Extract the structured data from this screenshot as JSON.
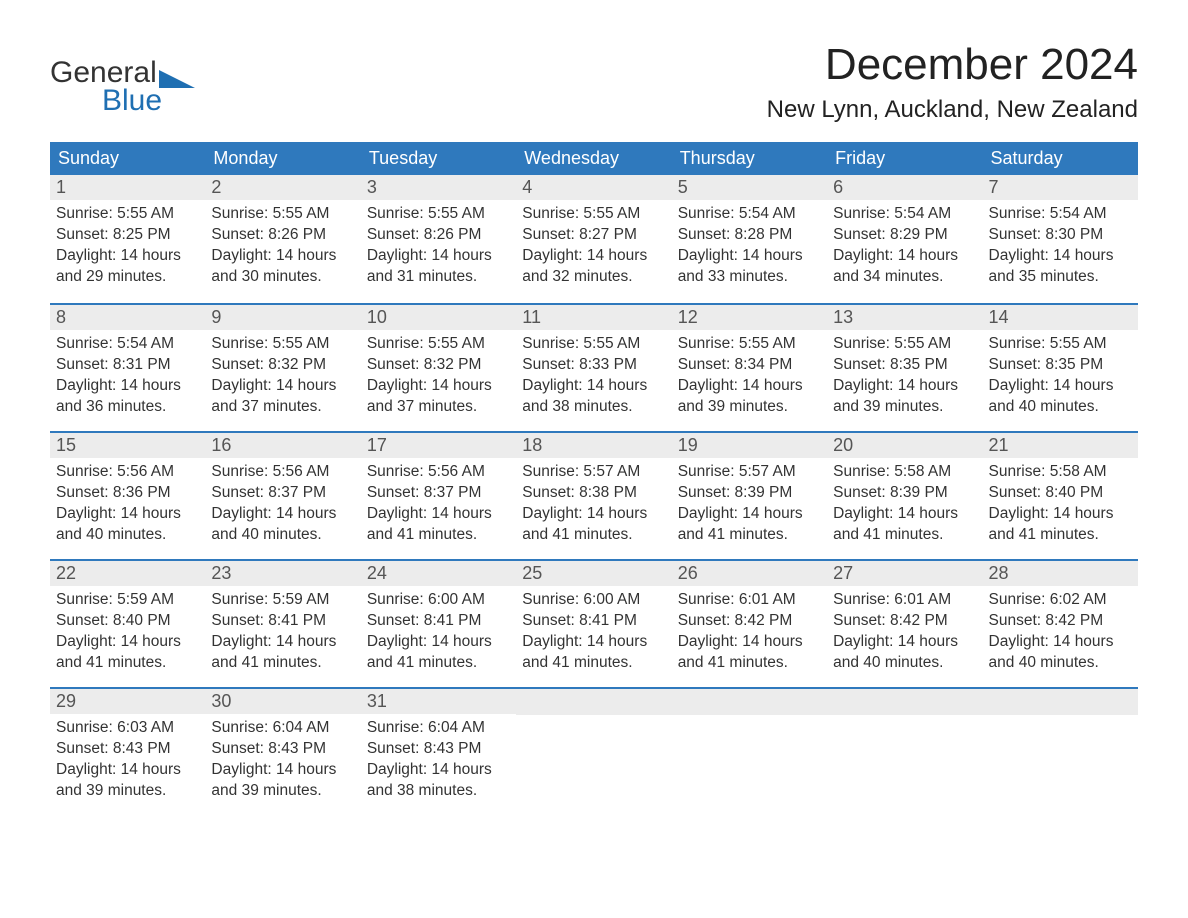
{
  "logo": {
    "top": "General",
    "bottom": "Blue",
    "icon_color": "#1f6fb2",
    "text_dark": "#333333",
    "text_blue": "#1f6fb2"
  },
  "title": "December 2024",
  "location": "New Lynn, Auckland, New Zealand",
  "colors": {
    "header_bg": "#2f79bd",
    "header_text": "#ffffff",
    "week_divider": "#2f79bd",
    "daynum_bg": "#ececec",
    "daynum_text": "#555555",
    "body_text": "#333333",
    "page_bg": "#ffffff"
  },
  "typography": {
    "title_fontsize": 44,
    "location_fontsize": 24,
    "weekday_fontsize": 18,
    "daynum_fontsize": 18,
    "body_fontsize": 15.5
  },
  "weekdays": [
    "Sunday",
    "Monday",
    "Tuesday",
    "Wednesday",
    "Thursday",
    "Friday",
    "Saturday"
  ],
  "weeks": [
    [
      {
        "n": "1",
        "sunrise": "5:55 AM",
        "sunset": "8:25 PM",
        "daylight": "14 hours and 29 minutes."
      },
      {
        "n": "2",
        "sunrise": "5:55 AM",
        "sunset": "8:26 PM",
        "daylight": "14 hours and 30 minutes."
      },
      {
        "n": "3",
        "sunrise": "5:55 AM",
        "sunset": "8:26 PM",
        "daylight": "14 hours and 31 minutes."
      },
      {
        "n": "4",
        "sunrise": "5:55 AM",
        "sunset": "8:27 PM",
        "daylight": "14 hours and 32 minutes."
      },
      {
        "n": "5",
        "sunrise": "5:54 AM",
        "sunset": "8:28 PM",
        "daylight": "14 hours and 33 minutes."
      },
      {
        "n": "6",
        "sunrise": "5:54 AM",
        "sunset": "8:29 PM",
        "daylight": "14 hours and 34 minutes."
      },
      {
        "n": "7",
        "sunrise": "5:54 AM",
        "sunset": "8:30 PM",
        "daylight": "14 hours and 35 minutes."
      }
    ],
    [
      {
        "n": "8",
        "sunrise": "5:54 AM",
        "sunset": "8:31 PM",
        "daylight": "14 hours and 36 minutes."
      },
      {
        "n": "9",
        "sunrise": "5:55 AM",
        "sunset": "8:32 PM",
        "daylight": "14 hours and 37 minutes."
      },
      {
        "n": "10",
        "sunrise": "5:55 AM",
        "sunset": "8:32 PM",
        "daylight": "14 hours and 37 minutes."
      },
      {
        "n": "11",
        "sunrise": "5:55 AM",
        "sunset": "8:33 PM",
        "daylight": "14 hours and 38 minutes."
      },
      {
        "n": "12",
        "sunrise": "5:55 AM",
        "sunset": "8:34 PM",
        "daylight": "14 hours and 39 minutes."
      },
      {
        "n": "13",
        "sunrise": "5:55 AM",
        "sunset": "8:35 PM",
        "daylight": "14 hours and 39 minutes."
      },
      {
        "n": "14",
        "sunrise": "5:55 AM",
        "sunset": "8:35 PM",
        "daylight": "14 hours and 40 minutes."
      }
    ],
    [
      {
        "n": "15",
        "sunrise": "5:56 AM",
        "sunset": "8:36 PM",
        "daylight": "14 hours and 40 minutes."
      },
      {
        "n": "16",
        "sunrise": "5:56 AM",
        "sunset": "8:37 PM",
        "daylight": "14 hours and 40 minutes."
      },
      {
        "n": "17",
        "sunrise": "5:56 AM",
        "sunset": "8:37 PM",
        "daylight": "14 hours and 41 minutes."
      },
      {
        "n": "18",
        "sunrise": "5:57 AM",
        "sunset": "8:38 PM",
        "daylight": "14 hours and 41 minutes."
      },
      {
        "n": "19",
        "sunrise": "5:57 AM",
        "sunset": "8:39 PM",
        "daylight": "14 hours and 41 minutes."
      },
      {
        "n": "20",
        "sunrise": "5:58 AM",
        "sunset": "8:39 PM",
        "daylight": "14 hours and 41 minutes."
      },
      {
        "n": "21",
        "sunrise": "5:58 AM",
        "sunset": "8:40 PM",
        "daylight": "14 hours and 41 minutes."
      }
    ],
    [
      {
        "n": "22",
        "sunrise": "5:59 AM",
        "sunset": "8:40 PM",
        "daylight": "14 hours and 41 minutes."
      },
      {
        "n": "23",
        "sunrise": "5:59 AM",
        "sunset": "8:41 PM",
        "daylight": "14 hours and 41 minutes."
      },
      {
        "n": "24",
        "sunrise": "6:00 AM",
        "sunset": "8:41 PM",
        "daylight": "14 hours and 41 minutes."
      },
      {
        "n": "25",
        "sunrise": "6:00 AM",
        "sunset": "8:41 PM",
        "daylight": "14 hours and 41 minutes."
      },
      {
        "n": "26",
        "sunrise": "6:01 AM",
        "sunset": "8:42 PM",
        "daylight": "14 hours and 41 minutes."
      },
      {
        "n": "27",
        "sunrise": "6:01 AM",
        "sunset": "8:42 PM",
        "daylight": "14 hours and 40 minutes."
      },
      {
        "n": "28",
        "sunrise": "6:02 AM",
        "sunset": "8:42 PM",
        "daylight": "14 hours and 40 minutes."
      }
    ],
    [
      {
        "n": "29",
        "sunrise": "6:03 AM",
        "sunset": "8:43 PM",
        "daylight": "14 hours and 39 minutes."
      },
      {
        "n": "30",
        "sunrise": "6:04 AM",
        "sunset": "8:43 PM",
        "daylight": "14 hours and 39 minutes."
      },
      {
        "n": "31",
        "sunrise": "6:04 AM",
        "sunset": "8:43 PM",
        "daylight": "14 hours and 38 minutes."
      },
      null,
      null,
      null,
      null
    ]
  ],
  "labels": {
    "sunrise": "Sunrise: ",
    "sunset": "Sunset: ",
    "daylight": "Daylight: "
  }
}
